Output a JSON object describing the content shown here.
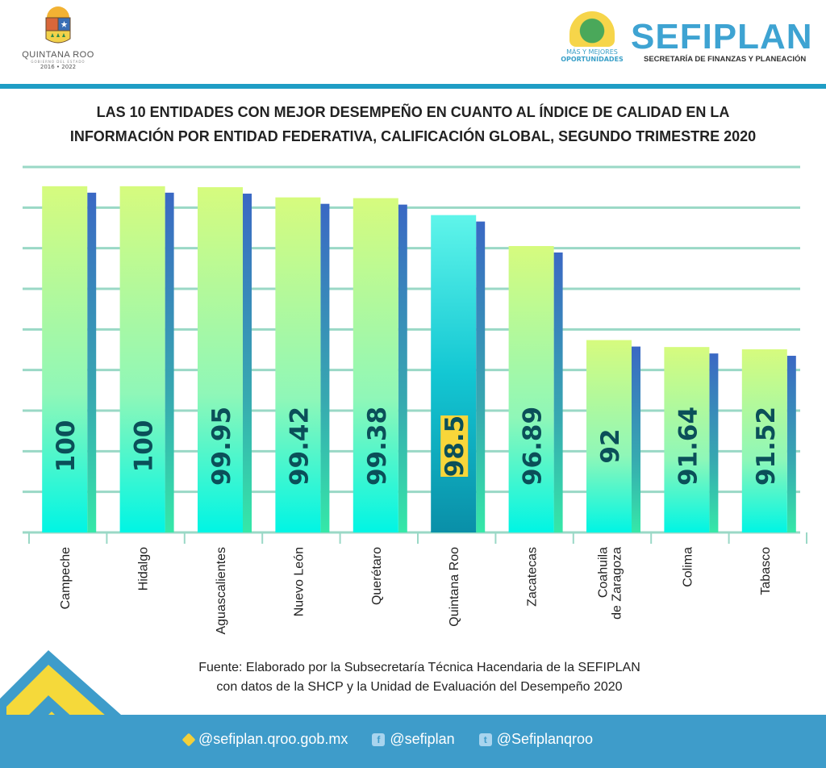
{
  "header": {
    "left_logo": {
      "name": "QUINTANA ROO",
      "subtitle": "GOBIERNO DEL ESTADO",
      "years": "2016 • 2022"
    },
    "right_logo": {
      "slogan_line1": "MÁS Y MEJORES",
      "slogan_line2": "OPORTUNIDADES",
      "title": "SEFIPLAN",
      "subtitle": "SECRETARÍA DE FINANZAS Y PLANEACIÓN"
    }
  },
  "chart_data": {
    "type": "bar",
    "title_line1": "LAS 10 ENTIDADES CON MEJOR DESEMPEÑO EN CUANTO AL ÍNDICE DE CALIDAD EN LA",
    "title_line2": "INFORMACIÓN POR ENTIDAD FEDERATIVA, CALIFICACIÓN GLOBAL, SEGUNDO TRIMESTRE 2020",
    "xlabel": "",
    "ylabel": "",
    "categories": [
      "Campeche",
      "Hidalgo",
      "Aguascalientes",
      "Nuevo León",
      "Querétaro",
      "Quintana Roo",
      "Zacatecas",
      "Coahuila de Zaragoza",
      "Colima",
      "Tabasco"
    ],
    "category_lines": [
      [
        "Campeche"
      ],
      [
        "Hidalgo"
      ],
      [
        "Aguascalientes"
      ],
      [
        "Nuevo León"
      ],
      [
        "Querétaro"
      ],
      [
        "Quintana Roo"
      ],
      [
        "Zacatecas"
      ],
      [
        "Coahuila",
        "de Zaragoza"
      ],
      [
        "Colima"
      ],
      [
        "Tabasco"
      ]
    ],
    "values": [
      100,
      100,
      99.95,
      99.42,
      99.38,
      98.5,
      96.89,
      92,
      91.64,
      91.52
    ],
    "value_labels": [
      "100",
      "100",
      "99.95",
      "99.42",
      "99.38",
      "98.5",
      "96.89",
      "92",
      "91.64",
      "91.52"
    ],
    "highlight": "Quintana Roo",
    "ylim": [
      82,
      101
    ],
    "grid": true,
    "legend": "none",
    "colors": {
      "bar_top": "#d6fb7e",
      "bar_bottom": "#00f5e4",
      "side_top": "#3a68c4",
      "side_bottom": "#35e8a8",
      "highlight_top": "#13c7d3",
      "highlight_bottom": "#0a8fa8",
      "highlight_label_bg": "#f8d63a",
      "label_text": "#0b4f59",
      "grid": "#9ad8c6"
    }
  },
  "source": {
    "line1": "Fuente: Elaborado por la Subsecretaría Técnica Hacendaria de la SEFIPLAN",
    "line2": "con datos de la SHCP y la Unidad de Evaluación del Desempeño 2020"
  },
  "footer": {
    "links": [
      {
        "icon": "web-diamond-icon",
        "label": "@sefiplan.qroo.gob.mx"
      },
      {
        "icon": "facebook-icon",
        "label": "@sefiplan"
      },
      {
        "icon": "twitter-icon",
        "label": "@Sefiplanqroo"
      }
    ]
  }
}
